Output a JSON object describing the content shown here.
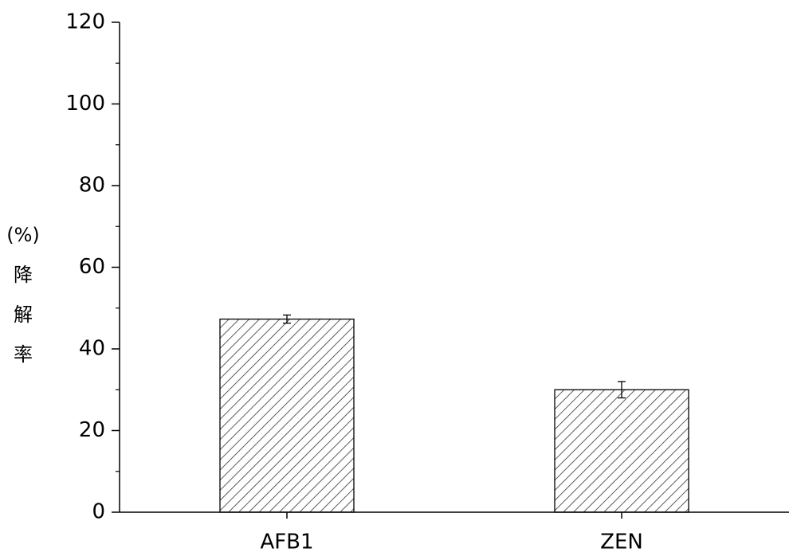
{
  "chart_data": {
    "type": "bar",
    "ylabel": "(%)降解率",
    "categories": [
      "AFB1",
      "ZEN"
    ],
    "values": [
      47.3,
      30
    ],
    "errors": [
      1,
      2
    ],
    "color": "#333333",
    "ylim": [
      0,
      120
    ],
    "yticks": [
      0,
      20,
      40,
      60,
      80,
      100,
      120
    ],
    "grid": false
  }
}
